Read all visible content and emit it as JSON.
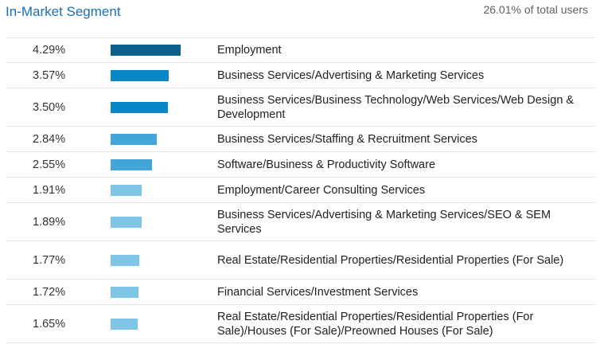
{
  "header": {
    "title": "In-Market Segment",
    "total": "26.01% of total users"
  },
  "rows": [
    {
      "percent": "4.29%",
      "value": 4.29,
      "label": "Employment",
      "color": "#0d5f8c"
    },
    {
      "percent": "3.57%",
      "value": 3.57,
      "label": "Business Services/Advertising & Marketing Services",
      "color": "#0c87c6"
    },
    {
      "percent": "3.50%",
      "value": 3.5,
      "label": "Business Services/Business Technology/Web Services/Web Design & Development",
      "color": "#0c87c6"
    },
    {
      "percent": "2.84%",
      "value": 2.84,
      "label": "Business Services/Staffing & Recruitment Services",
      "color": "#42a5d8"
    },
    {
      "percent": "2.55%",
      "value": 2.55,
      "label": "Software/Business & Productivity Software",
      "color": "#42a5d8"
    },
    {
      "percent": "1.91%",
      "value": 1.91,
      "label": "Employment/Career Consulting Services",
      "color": "#7ec4e7"
    },
    {
      "percent": "1.89%",
      "value": 1.89,
      "label": "Business Services/Advertising & Marketing Services/SEO & SEM Services",
      "color": "#7ec4e7"
    },
    {
      "percent": "1.77%",
      "value": 1.77,
      "label": "Real Estate/Residential Properties/Residential Properties (For Sale)",
      "color": "#7ec4e7"
    },
    {
      "percent": "1.72%",
      "value": 1.72,
      "label": "Financial Services/Investment Services",
      "color": "#7ec4e7"
    },
    {
      "percent": "1.65%",
      "value": 1.65,
      "label": "Real Estate/Residential Properties/Residential Properties (For Sale)/Houses (For Sale)/Preowned Houses (For Sale)",
      "color": "#7ec4e7"
    }
  ]
}
